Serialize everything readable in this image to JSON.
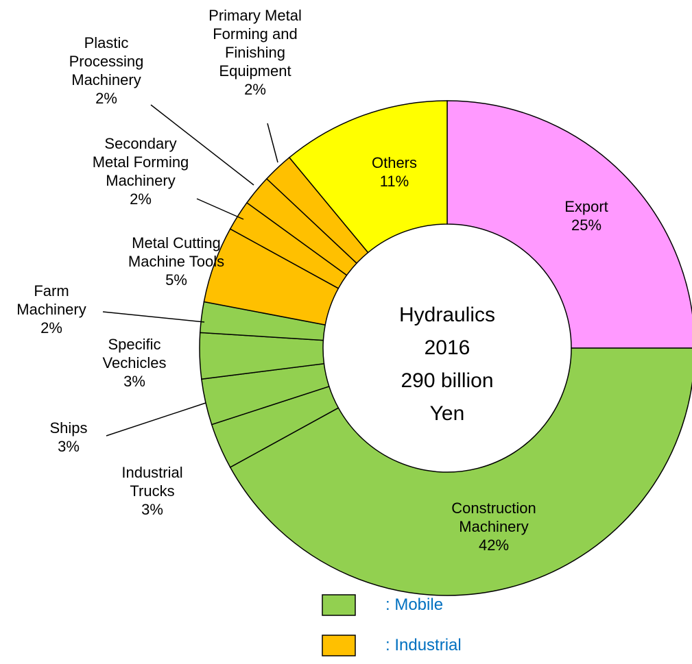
{
  "chart_data": {
    "type": "donut",
    "center_text": "Hydraulics\n2016\n290 billion\nYen",
    "categories": [
      "Export",
      "Construction\nMachinery",
      "Industrial\nTrucks",
      "Ships",
      "Specific\nVechicles",
      "Farm\nMachinery",
      "Metal Cutting\nMachine Tools",
      "Secondary\nMetal Forming\nMachinery",
      "Plastic\nProcessing\nMachinery",
      "Primary Metal\nForming and\nFinishing\nEquipment",
      "Others"
    ],
    "values": [
      25,
      42,
      3,
      3,
      3,
      2,
      5,
      2,
      2,
      2,
      11
    ],
    "value_labels": [
      "25%",
      "42%",
      "3%",
      "3%",
      "3%",
      "2%",
      "5%",
      "2%",
      "2%",
      "2%",
      "11%"
    ],
    "colors": [
      "#ff99ff",
      "#92d050",
      "#92d050",
      "#92d050",
      "#92d050",
      "#92d050",
      "#ffc000",
      "#ffc000",
      "#ffc000",
      "#ffc000",
      "#ffff00"
    ],
    "legend": [
      {
        "label": ": Mobile",
        "color": "#92d050"
      },
      {
        "label": ": Industrial",
        "color": "#ffc000"
      }
    ]
  }
}
